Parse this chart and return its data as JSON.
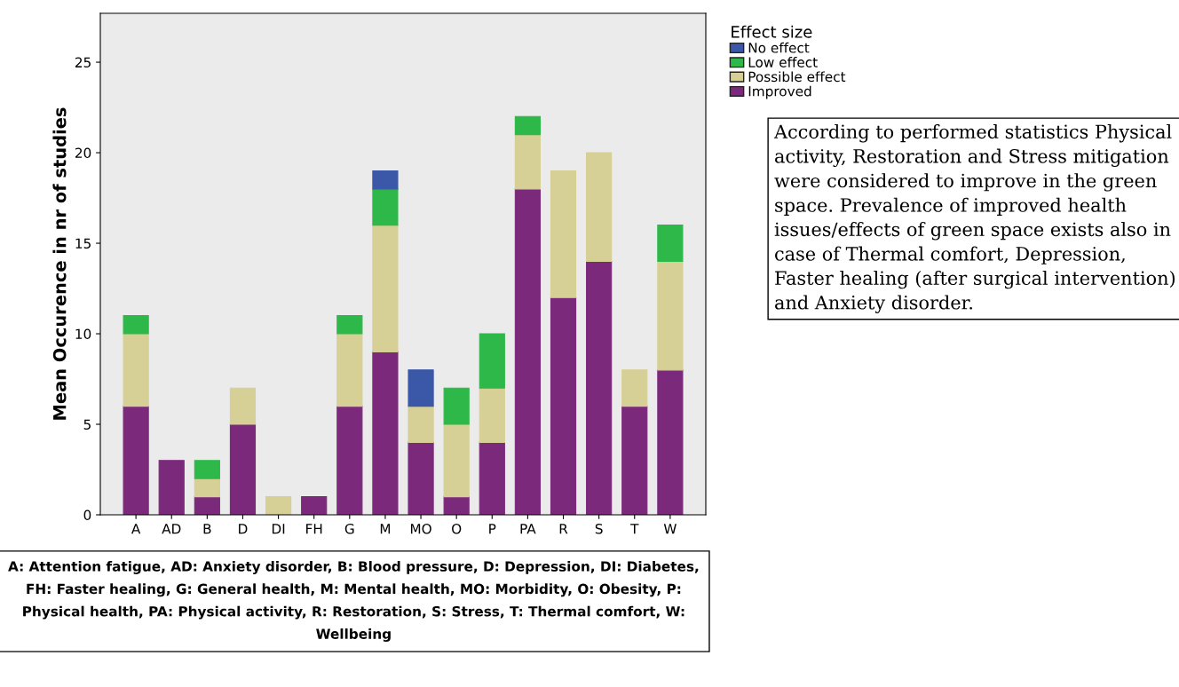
{
  "chart_data": {
    "type": "bar",
    "stacked": true,
    "ylabel": "Mean Occurence in nr of studies",
    "legend_title": "Effect size",
    "legend": "top right",
    "categories": [
      "A",
      "AD",
      "B",
      "D",
      "DI",
      "FH",
      "G",
      "M",
      "MO",
      "O",
      "P",
      "PA",
      "R",
      "S",
      "T",
      "W"
    ],
    "series": [
      {
        "name": "Improved",
        "color": "#7b2a7b",
        "values": [
          6,
          3,
          1,
          5,
          0,
          1,
          6,
          9,
          4,
          1,
          4,
          18,
          12,
          14,
          6,
          8
        ]
      },
      {
        "name": "Possible effect",
        "color": "#d6cf96",
        "values": [
          4,
          0,
          1,
          2,
          1,
          0,
          4,
          7,
          2,
          4,
          3,
          3,
          7,
          6,
          2,
          6
        ]
      },
      {
        "name": "Low effect",
        "color": "#2fb84a",
        "values": [
          1,
          0,
          1,
          0,
          0,
          0,
          1,
          2,
          0,
          2,
          3,
          1,
          0,
          0,
          0,
          2
        ]
      },
      {
        "name": "No effect",
        "color": "#3b57a8",
        "values": [
          0,
          0,
          0,
          0,
          0,
          0,
          0,
          1,
          2,
          0,
          0,
          0,
          0,
          0,
          0,
          0
        ]
      }
    ],
    "ylim": [
      0,
      27.7
    ],
    "yticks": [
      0,
      5,
      10,
      15,
      20,
      25
    ],
    "grid": false,
    "annotations": [
      "A: Attention fatigue, AD: Anxiety disorder, B: Blood pressure, D: Depression, DI: Diabetes, FH: Faster healing, G: General health, M: Mental health, MO: Morbidity, O: Obesity, P: Physical health, PA: Physical activity, R: Restoration, S: Stress, T: Thermal comfort, W: Wellbeing",
      "According to performed statistics Physical activity, Restoration and Stress mitigation were considered to improve in the green space. Prevalence of improved health issues/effects of green space exists also in case of Thermal comfort, Depression, Faster healing (after surgical intervention) and Anxiety disorder."
    ]
  }
}
